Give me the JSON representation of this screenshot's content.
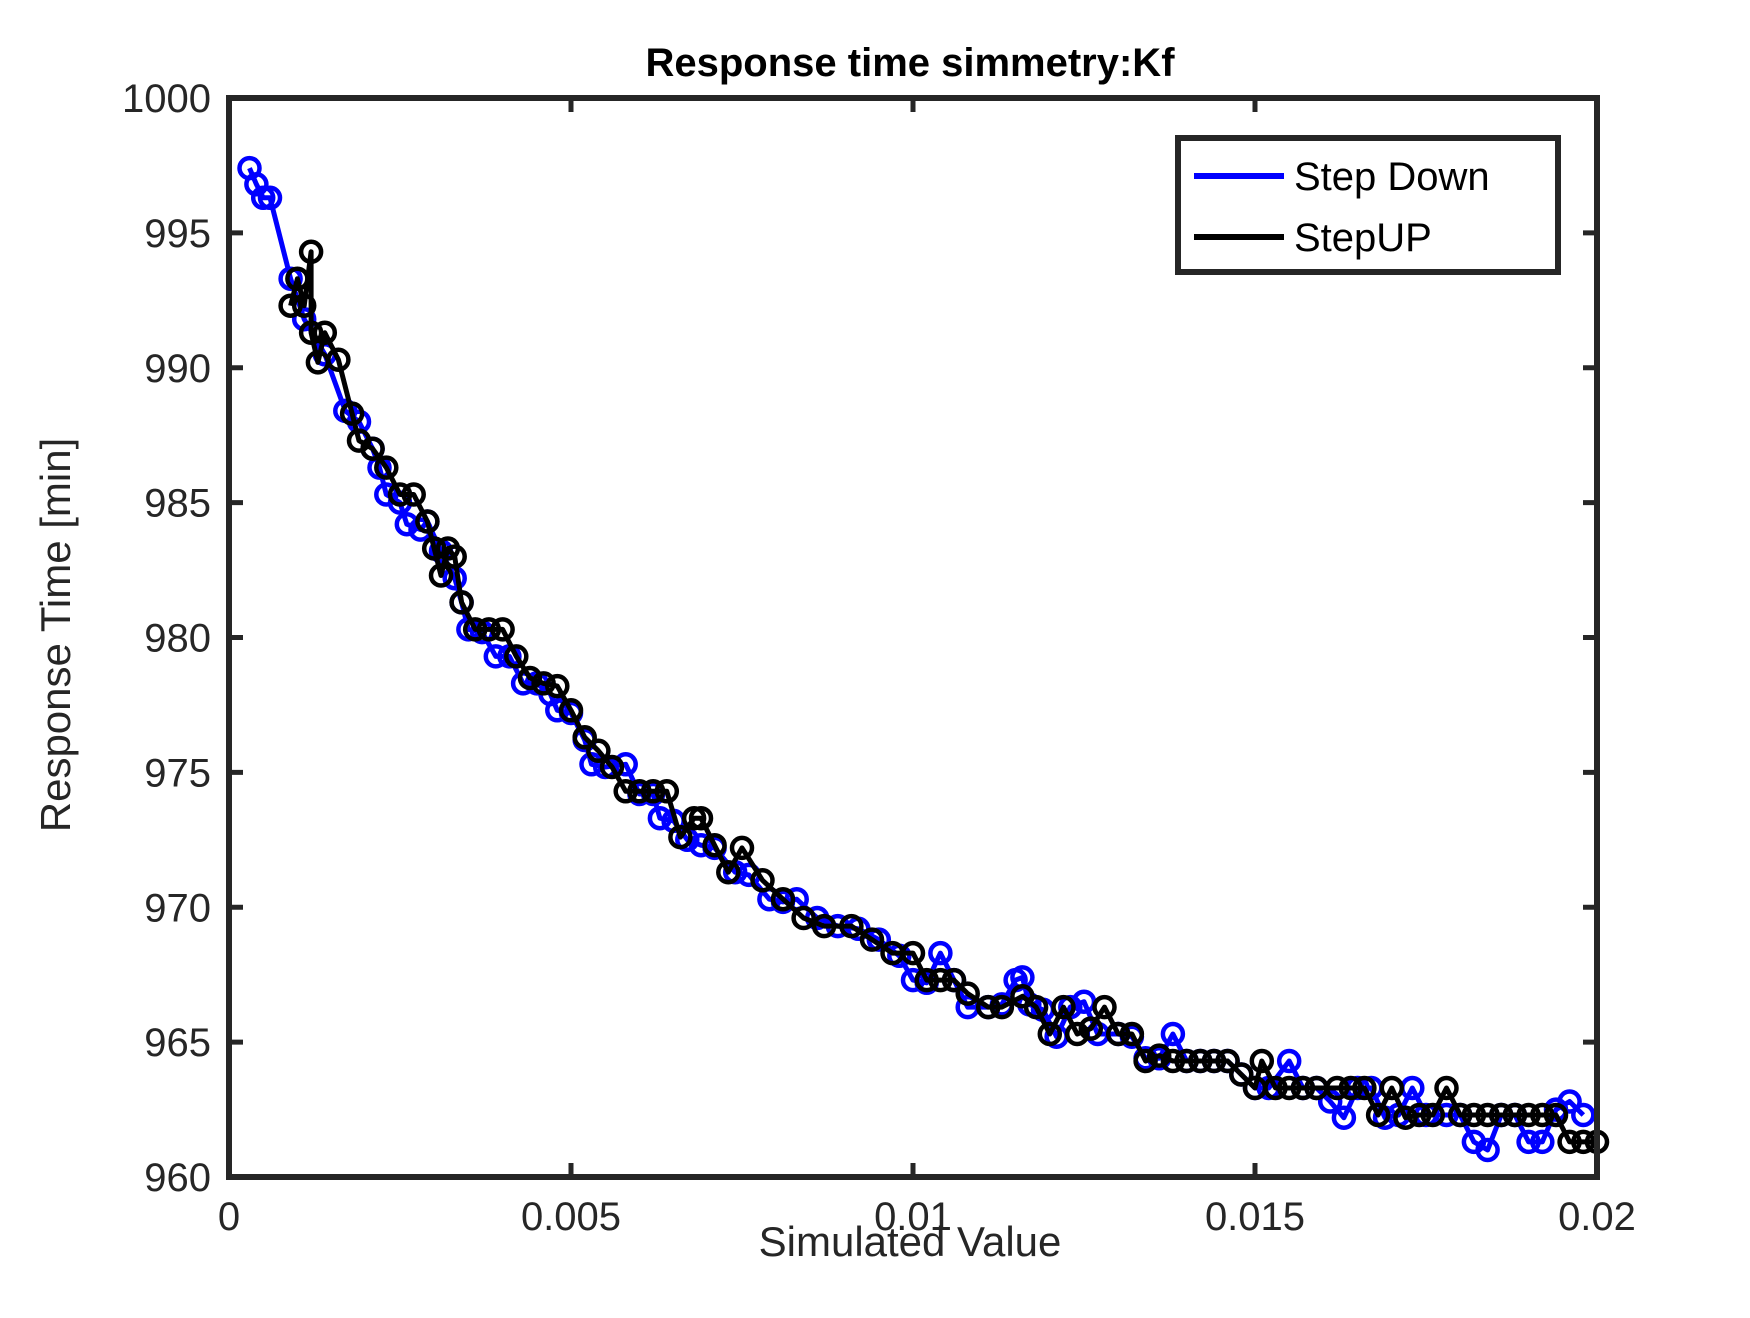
{
  "chart_data": {
    "type": "line",
    "title": "Response time simmetry:Kf",
    "xlabel": "Simulated Value",
    "ylabel": "Response Time [min]",
    "xlim": [
      0,
      0.02
    ],
    "ylim": [
      960,
      1000
    ],
    "x_ticks": [
      0,
      0.005,
      0.01,
      0.015,
      0.02
    ],
    "x_tick_labels": [
      "0",
      "0.005",
      "0.01",
      "0.015",
      "0.02"
    ],
    "y_ticks": [
      960,
      965,
      970,
      975,
      980,
      985,
      990,
      995,
      1000
    ],
    "y_tick_labels": [
      "960",
      "965",
      "970",
      "975",
      "980",
      "985",
      "990",
      "995",
      "1000"
    ],
    "grid": false,
    "legend_position": "top-right",
    "series": [
      {
        "name": "Step Down",
        "color": "#0000ff",
        "marker": "circle",
        "points": [
          [
            0.0003,
            997.4
          ],
          [
            0.0004,
            996.8
          ],
          [
            0.0005,
            996.3
          ],
          [
            0.0006,
            996.3
          ],
          [
            0.0009,
            993.3
          ],
          [
            0.0011,
            991.8
          ],
          [
            0.0014,
            990.5
          ],
          [
            0.0017,
            988.4
          ],
          [
            0.0019,
            988.0
          ],
          [
            0.0021,
            987.0
          ],
          [
            0.0022,
            986.3
          ],
          [
            0.0023,
            985.3
          ],
          [
            0.0025,
            985.0
          ],
          [
            0.0026,
            984.2
          ],
          [
            0.0028,
            984.0
          ],
          [
            0.0029,
            984.3
          ],
          [
            0.0031,
            983.2
          ],
          [
            0.0033,
            982.2
          ],
          [
            0.0034,
            981.3
          ],
          [
            0.0035,
            980.3
          ],
          [
            0.0037,
            980.2
          ],
          [
            0.0039,
            979.3
          ],
          [
            0.0041,
            979.3
          ],
          [
            0.0043,
            978.3
          ],
          [
            0.0045,
            978.3
          ],
          [
            0.0047,
            977.9
          ],
          [
            0.0048,
            977.3
          ],
          [
            0.005,
            977.2
          ],
          [
            0.0052,
            976.2
          ],
          [
            0.0053,
            975.3
          ],
          [
            0.0055,
            975.2
          ],
          [
            0.0058,
            975.3
          ],
          [
            0.006,
            974.2
          ],
          [
            0.0062,
            974.2
          ],
          [
            0.0063,
            973.3
          ],
          [
            0.0065,
            973.2
          ],
          [
            0.0067,
            972.5
          ],
          [
            0.0069,
            972.3
          ],
          [
            0.0071,
            972.2
          ],
          [
            0.0074,
            971.3
          ],
          [
            0.0076,
            971.2
          ],
          [
            0.0079,
            970.3
          ],
          [
            0.0081,
            970.2
          ],
          [
            0.0083,
            970.3
          ],
          [
            0.0086,
            969.6
          ],
          [
            0.0089,
            969.3
          ],
          [
            0.0092,
            969.2
          ],
          [
            0.0095,
            968.8
          ],
          [
            0.0098,
            968.2
          ],
          [
            0.01,
            967.3
          ],
          [
            0.0102,
            967.2
          ],
          [
            0.0104,
            968.3
          ],
          [
            0.0106,
            967.3
          ],
          [
            0.0108,
            966.3
          ],
          [
            0.0111,
            966.3
          ],
          [
            0.0113,
            966.4
          ],
          [
            0.0115,
            967.3
          ],
          [
            0.0116,
            967.4
          ],
          [
            0.0117,
            966.4
          ],
          [
            0.0119,
            966.2
          ],
          [
            0.0121,
            965.2
          ],
          [
            0.0123,
            966.3
          ],
          [
            0.0125,
            966.5
          ],
          [
            0.0127,
            965.3
          ],
          [
            0.013,
            965.3
          ],
          [
            0.0132,
            965.2
          ],
          [
            0.0134,
            964.4
          ],
          [
            0.0136,
            964.4
          ],
          [
            0.0138,
            965.3
          ],
          [
            0.014,
            964.3
          ],
          [
            0.0142,
            964.3
          ],
          [
            0.0144,
            964.3
          ],
          [
            0.0146,
            964.3
          ],
          [
            0.0148,
            963.8
          ],
          [
            0.015,
            963.3
          ],
          [
            0.0152,
            963.3
          ],
          [
            0.0155,
            964.3
          ],
          [
            0.0157,
            963.3
          ],
          [
            0.0159,
            963.3
          ],
          [
            0.0161,
            962.8
          ],
          [
            0.0163,
            962.2
          ],
          [
            0.0165,
            963.3
          ],
          [
            0.0167,
            963.3
          ],
          [
            0.0169,
            962.2
          ],
          [
            0.0171,
            962.3
          ],
          [
            0.0173,
            963.3
          ],
          [
            0.0175,
            962.3
          ],
          [
            0.0178,
            962.3
          ],
          [
            0.018,
            962.3
          ],
          [
            0.0182,
            961.3
          ],
          [
            0.0184,
            961.0
          ],
          [
            0.0186,
            962.3
          ],
          [
            0.0188,
            962.3
          ],
          [
            0.019,
            961.3
          ],
          [
            0.0192,
            961.3
          ],
          [
            0.0194,
            962.5
          ],
          [
            0.0196,
            962.8
          ],
          [
            0.0198,
            962.3
          ]
        ]
      },
      {
        "name": "StepUP",
        "color": "#000000",
        "marker": "circle",
        "points": [
          [
            0.0009,
            992.3
          ],
          [
            0.001,
            993.3
          ],
          [
            0.0011,
            992.3
          ],
          [
            0.0012,
            994.3
          ],
          [
            0.0012,
            991.3
          ],
          [
            0.0013,
            990.2
          ],
          [
            0.0014,
            991.3
          ],
          [
            0.0016,
            990.3
          ],
          [
            0.0018,
            988.3
          ],
          [
            0.0019,
            987.3
          ],
          [
            0.0021,
            987.0
          ],
          [
            0.0023,
            986.3
          ],
          [
            0.0025,
            985.3
          ],
          [
            0.0027,
            985.3
          ],
          [
            0.0029,
            984.3
          ],
          [
            0.003,
            983.3
          ],
          [
            0.0031,
            982.3
          ],
          [
            0.0032,
            983.3
          ],
          [
            0.0033,
            983.0
          ],
          [
            0.0034,
            981.3
          ],
          [
            0.0036,
            980.3
          ],
          [
            0.0038,
            980.3
          ],
          [
            0.004,
            980.3
          ],
          [
            0.0042,
            979.3
          ],
          [
            0.0044,
            978.5
          ],
          [
            0.0046,
            978.3
          ],
          [
            0.0048,
            978.2
          ],
          [
            0.005,
            977.3
          ],
          [
            0.0052,
            976.3
          ],
          [
            0.0054,
            975.8
          ],
          [
            0.0056,
            975.2
          ],
          [
            0.0058,
            974.3
          ],
          [
            0.006,
            974.3
          ],
          [
            0.0062,
            974.3
          ],
          [
            0.0064,
            974.3
          ],
          [
            0.0066,
            972.6
          ],
          [
            0.0068,
            973.3
          ],
          [
            0.0069,
            973.3
          ],
          [
            0.0071,
            972.3
          ],
          [
            0.0073,
            971.3
          ],
          [
            0.0075,
            972.2
          ],
          [
            0.0078,
            971.0
          ],
          [
            0.0081,
            970.3
          ],
          [
            0.0084,
            969.6
          ],
          [
            0.0087,
            969.3
          ],
          [
            0.0091,
            969.3
          ],
          [
            0.0094,
            968.8
          ],
          [
            0.0097,
            968.3
          ],
          [
            0.01,
            968.3
          ],
          [
            0.0102,
            967.3
          ],
          [
            0.0104,
            967.3
          ],
          [
            0.0106,
            967.3
          ],
          [
            0.0108,
            966.8
          ],
          [
            0.0111,
            966.3
          ],
          [
            0.0113,
            966.3
          ],
          [
            0.0116,
            966.7
          ],
          [
            0.0118,
            966.3
          ],
          [
            0.012,
            965.3
          ],
          [
            0.0122,
            966.3
          ],
          [
            0.0124,
            965.3
          ],
          [
            0.0126,
            965.5
          ],
          [
            0.0128,
            966.3
          ],
          [
            0.013,
            965.3
          ],
          [
            0.0132,
            965.3
          ],
          [
            0.0134,
            964.3
          ],
          [
            0.0136,
            964.5
          ],
          [
            0.0138,
            964.3
          ],
          [
            0.014,
            964.3
          ],
          [
            0.0142,
            964.3
          ],
          [
            0.0144,
            964.3
          ],
          [
            0.0146,
            964.3
          ],
          [
            0.0148,
            963.8
          ],
          [
            0.015,
            963.3
          ],
          [
            0.0151,
            964.3
          ],
          [
            0.0153,
            963.3
          ],
          [
            0.0155,
            963.3
          ],
          [
            0.0157,
            963.3
          ],
          [
            0.0159,
            963.3
          ],
          [
            0.0162,
            963.3
          ],
          [
            0.0164,
            963.3
          ],
          [
            0.0166,
            963.3
          ],
          [
            0.0168,
            962.3
          ],
          [
            0.017,
            963.3
          ],
          [
            0.0172,
            962.2
          ],
          [
            0.0174,
            962.3
          ],
          [
            0.0176,
            962.3
          ],
          [
            0.0178,
            963.3
          ],
          [
            0.018,
            962.3
          ],
          [
            0.0182,
            962.3
          ],
          [
            0.0184,
            962.3
          ],
          [
            0.0186,
            962.3
          ],
          [
            0.0188,
            962.3
          ],
          [
            0.019,
            962.3
          ],
          [
            0.0192,
            962.3
          ],
          [
            0.0194,
            962.3
          ],
          [
            0.0196,
            961.3
          ],
          [
            0.0198,
            961.3
          ],
          [
            0.02,
            961.3
          ]
        ]
      }
    ]
  }
}
